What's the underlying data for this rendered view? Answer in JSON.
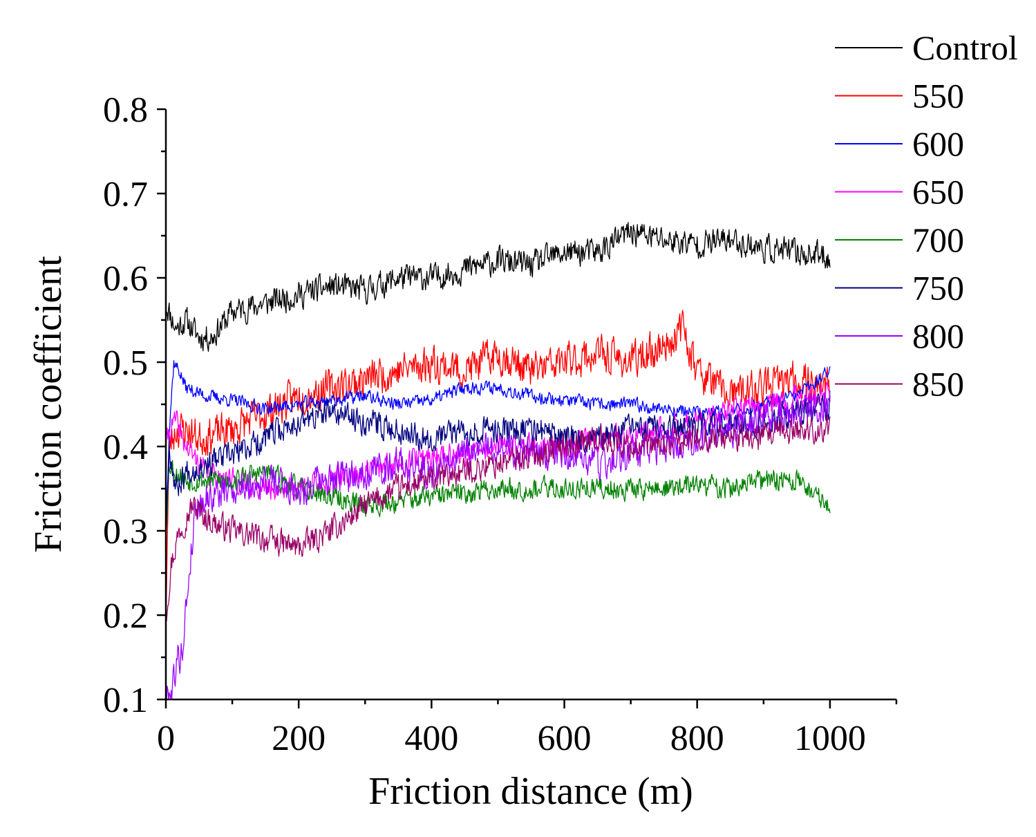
{
  "chart_data": {
    "type": "line",
    "title": "",
    "xlabel": "Friction distance (m)",
    "ylabel": "Friction coefficient",
    "xlim": [
      0,
      1100
    ],
    "ylim": [
      0.1,
      0.8
    ],
    "xticks": [
      "0",
      "200",
      "400",
      "600",
      "800",
      "1000"
    ],
    "yticks": [
      "0.1",
      "0.2",
      "0.3",
      "0.4",
      "0.5",
      "0.6",
      "0.7",
      "0.8"
    ],
    "legend_position": "top-right",
    "series": [
      {
        "name": "Control",
        "color": "#000000",
        "noise": 0.022,
        "seed": 11,
        "x": [
          0,
          5,
          15,
          30,
          50,
          70,
          100,
          150,
          200,
          250,
          300,
          350,
          400,
          450,
          500,
          550,
          600,
          650,
          700,
          750,
          800,
          850,
          900,
          950,
          1000
        ],
        "y": [
          0.57,
          0.56,
          0.54,
          0.55,
          0.53,
          0.53,
          0.56,
          0.57,
          0.58,
          0.59,
          0.585,
          0.6,
          0.6,
          0.61,
          0.62,
          0.615,
          0.63,
          0.63,
          0.655,
          0.645,
          0.64,
          0.645,
          0.635,
          0.63,
          0.625
        ]
      },
      {
        "name": "550",
        "color": "#ff0000",
        "noise": 0.03,
        "seed": 23,
        "x": [
          0,
          5,
          15,
          30,
          50,
          100,
          150,
          200,
          250,
          300,
          350,
          400,
          450,
          500,
          550,
          600,
          650,
          700,
          750,
          780,
          800,
          850,
          900,
          950,
          1000
        ],
        "y": [
          0.2,
          0.4,
          0.42,
          0.42,
          0.41,
          0.42,
          0.44,
          0.46,
          0.47,
          0.48,
          0.49,
          0.5,
          0.49,
          0.51,
          0.49,
          0.5,
          0.51,
          0.5,
          0.52,
          0.54,
          0.49,
          0.46,
          0.47,
          0.48,
          0.47
        ]
      },
      {
        "name": "600",
        "color": "#0000ff",
        "noise": 0.011,
        "seed": 37,
        "x": [
          0,
          5,
          12,
          20,
          30,
          60,
          100,
          150,
          200,
          250,
          300,
          350,
          400,
          450,
          500,
          550,
          600,
          650,
          700,
          750,
          800,
          850,
          900,
          950,
          1000
        ],
        "y": [
          0.3,
          0.42,
          0.5,
          0.49,
          0.47,
          0.46,
          0.455,
          0.445,
          0.45,
          0.455,
          0.46,
          0.45,
          0.455,
          0.47,
          0.47,
          0.46,
          0.455,
          0.45,
          0.45,
          0.445,
          0.44,
          0.44,
          0.45,
          0.46,
          0.49
        ]
      },
      {
        "name": "650",
        "color": "#ff00ff",
        "noise": 0.02,
        "seed": 41,
        "x": [
          0,
          5,
          15,
          30,
          60,
          100,
          150,
          200,
          250,
          300,
          350,
          400,
          450,
          500,
          550,
          600,
          650,
          700,
          750,
          800,
          850,
          900,
          950,
          1000
        ],
        "y": [
          0.4,
          0.42,
          0.43,
          0.4,
          0.37,
          0.36,
          0.35,
          0.35,
          0.36,
          0.37,
          0.38,
          0.39,
          0.39,
          0.4,
          0.4,
          0.4,
          0.41,
          0.41,
          0.42,
          0.43,
          0.44,
          0.45,
          0.46,
          0.46
        ]
      },
      {
        "name": "700",
        "color": "#008000",
        "noise": 0.018,
        "seed": 53,
        "x": [
          0,
          5,
          15,
          30,
          60,
          100,
          150,
          200,
          250,
          300,
          350,
          400,
          450,
          500,
          550,
          600,
          650,
          700,
          750,
          800,
          850,
          900,
          950,
          1000
        ],
        "y": [
          0.3,
          0.38,
          0.37,
          0.36,
          0.36,
          0.36,
          0.37,
          0.35,
          0.34,
          0.33,
          0.335,
          0.34,
          0.345,
          0.35,
          0.35,
          0.35,
          0.35,
          0.35,
          0.35,
          0.355,
          0.35,
          0.36,
          0.36,
          0.33
        ]
      },
      {
        "name": "750",
        "color": "#000080",
        "noise": 0.022,
        "seed": 67,
        "x": [
          0,
          5,
          15,
          30,
          60,
          100,
          150,
          200,
          250,
          300,
          350,
          400,
          450,
          500,
          550,
          600,
          650,
          700,
          750,
          800,
          850,
          900,
          950,
          1000
        ],
        "y": [
          0.3,
          0.4,
          0.35,
          0.37,
          0.38,
          0.39,
          0.41,
          0.43,
          0.44,
          0.43,
          0.42,
          0.41,
          0.42,
          0.42,
          0.42,
          0.41,
          0.41,
          0.42,
          0.42,
          0.42,
          0.43,
          0.43,
          0.44,
          0.45
        ]
      },
      {
        "name": "800",
        "color": "#9900ff",
        "noise": 0.028,
        "seed": 79,
        "x": [
          0,
          8,
          15,
          25,
          35,
          45,
          60,
          100,
          150,
          200,
          250,
          300,
          350,
          400,
          450,
          500,
          550,
          600,
          650,
          700,
          750,
          800,
          850,
          900,
          950,
          1000
        ],
        "y": [
          0.1,
          0.11,
          0.14,
          0.16,
          0.25,
          0.33,
          0.34,
          0.35,
          0.36,
          0.35,
          0.36,
          0.37,
          0.38,
          0.37,
          0.39,
          0.4,
          0.39,
          0.39,
          0.38,
          0.39,
          0.4,
          0.41,
          0.42,
          0.43,
          0.44,
          0.45
        ]
      },
      {
        "name": "850",
        "color": "#990066",
        "noise": 0.022,
        "seed": 97,
        "x": [
          0,
          8,
          20,
          40,
          70,
          100,
          150,
          200,
          250,
          300,
          350,
          400,
          450,
          500,
          550,
          600,
          650,
          700,
          750,
          800,
          850,
          900,
          950,
          1000
        ],
        "y": [
          0.2,
          0.26,
          0.3,
          0.33,
          0.31,
          0.3,
          0.29,
          0.28,
          0.3,
          0.33,
          0.35,
          0.36,
          0.37,
          0.38,
          0.39,
          0.4,
          0.41,
          0.4,
          0.4,
          0.41,
          0.41,
          0.41,
          0.42,
          0.42
        ]
      }
    ]
  }
}
